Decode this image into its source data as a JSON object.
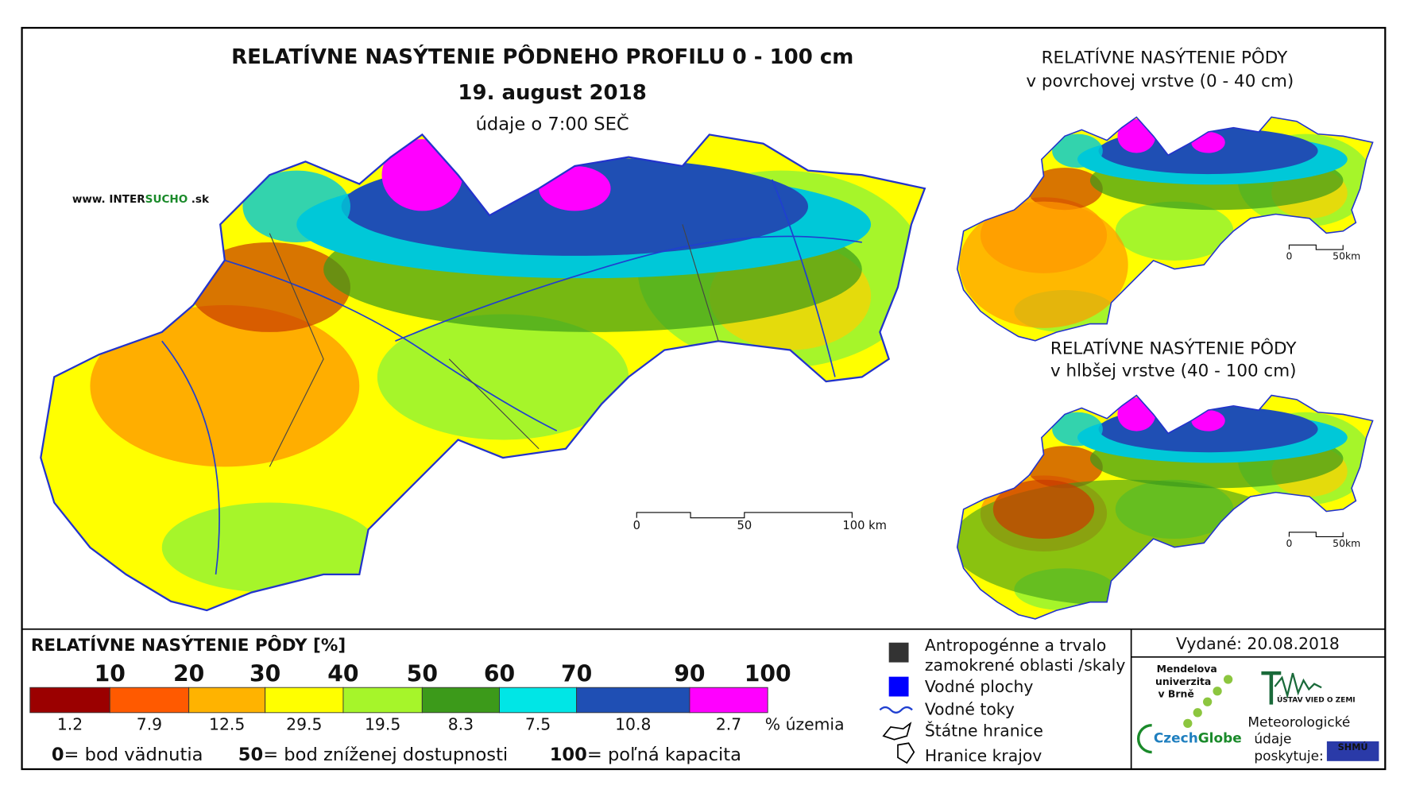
{
  "title": "RELATÍVNE NASÝTENIE PÔDNEHO PROFILU 0 - 100 cm",
  "date": "19. august 2018",
  "time_note": "údaje o 7:00 SEČ",
  "website": {
    "prefix": "www. INTER",
    "highlight": "SUCHO",
    "suffix": ".sk"
  },
  "main_map": {
    "scale": [
      "0",
      "50",
      "100 km"
    ]
  },
  "inset_maps": [
    {
      "title_lines": [
        "RELATÍVNE NASÝTENIE PÔDY",
        "v povrchovej vrstve (0 - 40 cm)"
      ],
      "scale": [
        "0",
        "50km"
      ]
    },
    {
      "title_lines": [
        "RELATÍVNE NASÝTENIE PÔDY",
        "v hlbšej vrstve (40 - 100 cm)"
      ],
      "scale": [
        "0",
        "50km"
      ]
    }
  ],
  "legend": {
    "title": "RELATÍVNE NASÝTENIE PÔDY [%]",
    "thresholds": [
      10,
      20,
      30,
      40,
      50,
      60,
      70,
      90,
      100
    ],
    "classes": [
      {
        "color": "#9b0000",
        "share": 1.2
      },
      {
        "color": "#ff5a00",
        "share": 7.9
      },
      {
        "color": "#ffb300",
        "share": 12.5
      },
      {
        "color": "#ffff00",
        "share": 29.5
      },
      {
        "color": "#a6f52a",
        "share": 19.5
      },
      {
        "color": "#3c9a1a",
        "share": 8.3
      },
      {
        "color": "#00e6e6",
        "share": 7.5
      },
      {
        "color": "#1f4fb4",
        "share": 10.8
      },
      {
        "color": "#ff00ff",
        "share": 2.7
      }
    ],
    "share_unit": "% územia",
    "notes": [
      {
        "value": "0",
        "label": "= bod vädnutia"
      },
      {
        "value": "50",
        "label": "= bod zníženej dostupnosti"
      },
      {
        "value": "100",
        "label": "= poľná kapacita"
      }
    ]
  },
  "symbols": {
    "anthropogenic": [
      "Antropogénne a trvalo",
      "zamokrené oblasti /skaly"
    ],
    "water_bodies": "Vodné plochy",
    "rivers": "Vodné toky",
    "state_border": "Štátne hranice",
    "region_border": "Hranice krajov"
  },
  "issued": "Vydané: 20.08.2018",
  "logos": {
    "mendel": [
      "Mendelova",
      "univerzita",
      "v Brně"
    ],
    "czechglobe": {
      "a": "Czech",
      "b": "Globe"
    },
    "uvz": "ÚSTAV VIED O ZEMI",
    "meteo": [
      "Meteorologické",
      "údaje",
      "poskytuje:"
    ],
    "shmu": "SHMÚ"
  }
}
